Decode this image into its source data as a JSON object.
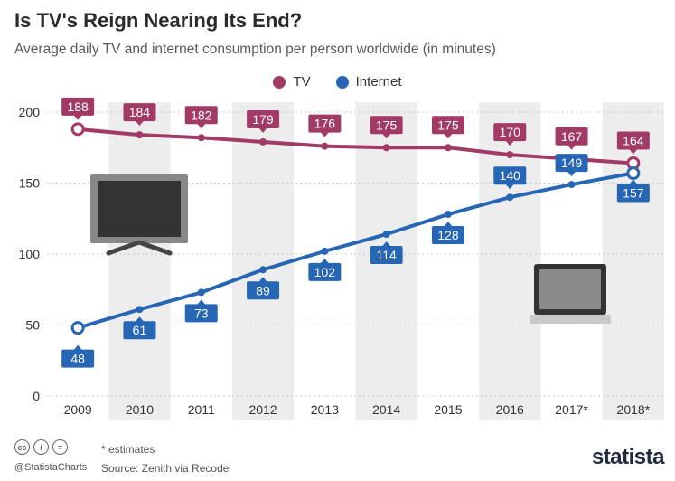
{
  "title": "Is TV's Reign Nearing Its End?",
  "subtitle": "Average daily TV and internet consumption per person worldwide (in minutes)",
  "footer": {
    "note": "* estimates",
    "source": "Source: Zenith via Recode",
    "handle": "@StatistaCharts",
    "brand": "statista",
    "cc_icons": [
      "cc",
      "i",
      "="
    ]
  },
  "colors": {
    "tv": "#a23a66",
    "internet": "#2666b4",
    "band": "#ededed",
    "axis": "#555555"
  },
  "icons": [
    "tv-illustration",
    "laptop-illustration",
    "statista-logo"
  ],
  "chart_data": {
    "type": "line",
    "categories": [
      "2009",
      "2010",
      "2011",
      "2012",
      "2013",
      "2014",
      "2015",
      "2016",
      "2017*",
      "2018*"
    ],
    "series": [
      {
        "name": "TV",
        "values": [
          188,
          184,
          182,
          179,
          176,
          175,
          175,
          170,
          167,
          164
        ]
      },
      {
        "name": "Internet",
        "values": [
          48,
          61,
          73,
          89,
          102,
          114,
          128,
          140,
          149,
          157
        ]
      }
    ],
    "yticks": [
      0,
      50,
      100,
      150,
      200
    ],
    "ylim": [
      0,
      200
    ],
    "grid": true,
    "legend": "top-center",
    "alternating_bands": true
  }
}
